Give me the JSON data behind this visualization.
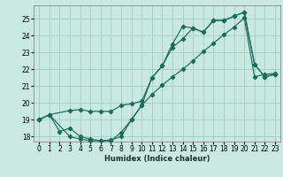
{
  "xlabel": "Humidex (Indice chaleur)",
  "bg_color": "#c8e8e0",
  "grid_color": "#a8d0c8",
  "line_color": "#1a6b5a",
  "xlim": [
    -0.5,
    23.5
  ],
  "ylim": [
    17.7,
    25.8
  ],
  "yticks": [
    18,
    19,
    20,
    21,
    22,
    23,
    24,
    25
  ],
  "xticks": [
    0,
    1,
    2,
    3,
    4,
    5,
    6,
    7,
    8,
    9,
    10,
    11,
    12,
    13,
    14,
    15,
    16,
    17,
    18,
    19,
    20,
    21,
    22,
    23
  ],
  "curve1_x": [
    0,
    1,
    3,
    4,
    5,
    6,
    7,
    8,
    9,
    10,
    11,
    12,
    13,
    14,
    15,
    16,
    17,
    18,
    19,
    20,
    21,
    22,
    23
  ],
  "curve1_y": [
    19.0,
    19.3,
    18.0,
    17.85,
    17.75,
    17.75,
    17.8,
    18.0,
    19.0,
    19.85,
    21.5,
    22.2,
    23.3,
    23.8,
    24.45,
    24.2,
    24.9,
    24.9,
    25.15,
    25.4,
    22.3,
    21.55,
    21.7
  ],
  "curve2_x": [
    0,
    1,
    3,
    4,
    5,
    6,
    7,
    8,
    9,
    10,
    11,
    12,
    13,
    14,
    15,
    16,
    17,
    18,
    19,
    20,
    21,
    22,
    23
  ],
  "curve2_y": [
    19.0,
    19.3,
    19.55,
    19.6,
    19.5,
    19.5,
    19.5,
    19.85,
    19.95,
    20.1,
    21.5,
    22.2,
    23.5,
    24.55,
    24.45,
    24.2,
    24.9,
    24.9,
    25.15,
    25.4,
    22.3,
    21.55,
    21.7
  ],
  "curve3_x": [
    0,
    1,
    2,
    3,
    4,
    5,
    6,
    7,
    8,
    9,
    10,
    11,
    12,
    13,
    14,
    15,
    16,
    17,
    18,
    19,
    20,
    21,
    22,
    23
  ],
  "curve3_y": [
    19.0,
    19.3,
    18.3,
    18.5,
    18.0,
    17.85,
    17.75,
    17.75,
    18.25,
    19.0,
    19.85,
    20.5,
    21.05,
    21.55,
    22.0,
    22.5,
    23.05,
    23.55,
    24.05,
    24.5,
    25.05,
    21.55,
    21.7,
    21.75
  ]
}
